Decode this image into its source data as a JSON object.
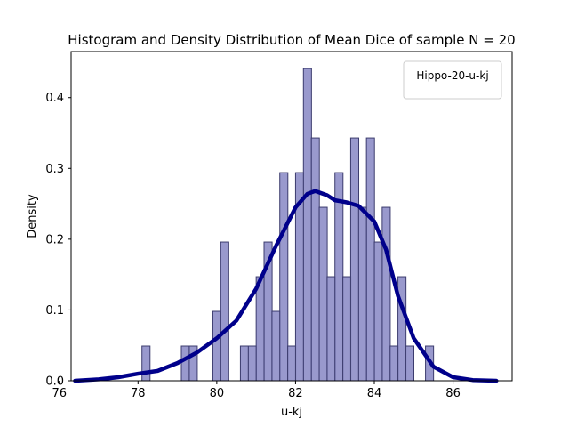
{
  "chart_data": {
    "type": "bar",
    "title": "Histogram and Density Distribution of Mean Dice of sample N = 20",
    "xlabel": "u-kj",
    "ylabel": "Density",
    "xlim": [
      76.3,
      87.5
    ],
    "ylim": [
      0,
      0.465
    ],
    "xticks": [
      76,
      78,
      80,
      82,
      84,
      86
    ],
    "yticks": [
      0.0,
      0.1,
      0.2,
      0.3,
      0.4
    ],
    "grid": false,
    "legend": {
      "entries": [
        "Hippo-20-u-kj"
      ],
      "placement": "top-right"
    },
    "histogram": {
      "color": "#8080c0",
      "edge_color": "#3c3c6e",
      "bin_width": 0.205,
      "bins": [
        {
          "x": 78.1,
          "density": 0.049
        },
        {
          "x": 79.1,
          "density": 0.049
        },
        {
          "x": 79.3,
          "density": 0.049
        },
        {
          "x": 79.9,
          "density": 0.098
        },
        {
          "x": 80.1,
          "density": 0.196
        },
        {
          "x": 80.6,
          "density": 0.049
        },
        {
          "x": 80.8,
          "density": 0.049
        },
        {
          "x": 81.0,
          "density": 0.147
        },
        {
          "x": 81.2,
          "density": 0.196
        },
        {
          "x": 81.4,
          "density": 0.098
        },
        {
          "x": 81.6,
          "density": 0.294
        },
        {
          "x": 81.8,
          "density": 0.049
        },
        {
          "x": 82.0,
          "density": 0.294
        },
        {
          "x": 82.2,
          "density": 0.441
        },
        {
          "x": 82.4,
          "density": 0.343
        },
        {
          "x": 82.6,
          "density": 0.245
        },
        {
          "x": 82.8,
          "density": 0.147
        },
        {
          "x": 83.0,
          "density": 0.294
        },
        {
          "x": 83.2,
          "density": 0.147
        },
        {
          "x": 83.4,
          "density": 0.343
        },
        {
          "x": 83.6,
          "density": 0.245
        },
        {
          "x": 83.8,
          "density": 0.343
        },
        {
          "x": 84.0,
          "density": 0.196
        },
        {
          "x": 84.2,
          "density": 0.245
        },
        {
          "x": 84.4,
          "density": 0.049
        },
        {
          "x": 84.6,
          "density": 0.147
        },
        {
          "x": 84.8,
          "density": 0.049
        },
        {
          "x": 85.3,
          "density": 0.049
        }
      ]
    },
    "density_curve": {
      "color": "#00008b",
      "points": [
        [
          76.4,
          0.0
        ],
        [
          77.0,
          0.002
        ],
        [
          77.5,
          0.005
        ],
        [
          78.0,
          0.01
        ],
        [
          78.5,
          0.014
        ],
        [
          79.0,
          0.025
        ],
        [
          79.5,
          0.04
        ],
        [
          80.0,
          0.06
        ],
        [
          80.5,
          0.085
        ],
        [
          81.0,
          0.13
        ],
        [
          81.5,
          0.19
        ],
        [
          82.0,
          0.245
        ],
        [
          82.3,
          0.264
        ],
        [
          82.5,
          0.268
        ],
        [
          82.8,
          0.262
        ],
        [
          83.0,
          0.255
        ],
        [
          83.3,
          0.252
        ],
        [
          83.6,
          0.247
        ],
        [
          84.0,
          0.225
        ],
        [
          84.3,
          0.185
        ],
        [
          84.6,
          0.12
        ],
        [
          85.0,
          0.06
        ],
        [
          85.5,
          0.02
        ],
        [
          86.0,
          0.005
        ],
        [
          86.5,
          0.001
        ],
        [
          87.1,
          0.0
        ]
      ]
    }
  }
}
